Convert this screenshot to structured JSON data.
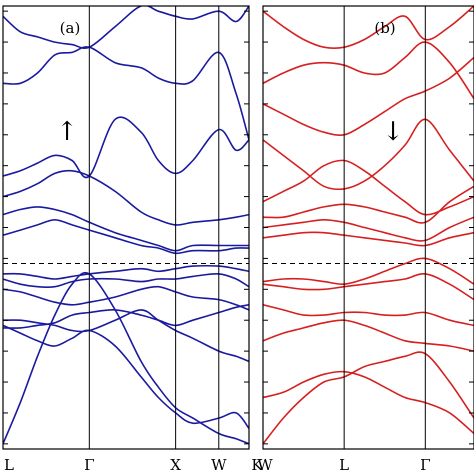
{
  "chart_data": [
    {
      "type": "line",
      "panel_label": "(a)",
      "spin_label": "↑",
      "color": "#1a1a9e",
      "x_ticks": [
        "L",
        "Γ",
        "X",
        "W",
        "K"
      ],
      "x_tick_positions": [
        0,
        1,
        2,
        2.5,
        2.85
      ],
      "fermi_level": 0,
      "ylim": [
        -3.6,
        5.0
      ],
      "grid": "vertical lines at high-symmetry points",
      "series": [
        {
          "x": [
            0,
            0.2,
            0.4,
            0.6,
            0.8,
            1.0,
            1.3,
            1.6,
            1.8,
            2.0,
            2.2,
            2.5,
            2.7,
            2.85
          ],
          "values": [
            -3.5,
            -2.7,
            -1.8,
            -1.0,
            -0.4,
            -0.2,
            -0.9,
            -1.9,
            -2.4,
            -2.8,
            -3.0,
            -3.3,
            -3.4,
            -3.5
          ]
        },
        {
          "x": [
            0,
            0.2,
            0.4,
            0.6,
            0.8,
            1.0,
            1.3,
            1.6,
            1.8,
            2.0,
            2.2,
            2.5,
            2.7,
            2.85
          ],
          "values": [
            -1.2,
            -1.35,
            -1.5,
            -1.6,
            -1.45,
            -1.3,
            -1.6,
            -2.2,
            -2.6,
            -2.9,
            -3.1,
            -3.0,
            -2.9,
            -3.2
          ]
        },
        {
          "x": [
            0,
            0.2,
            0.4,
            0.6,
            0.8,
            1.0,
            1.3,
            1.6,
            1.8,
            2.0,
            2.2,
            2.5,
            2.7,
            2.85
          ],
          "values": [
            -1.1,
            -1.1,
            -1.15,
            -1.2,
            -1.3,
            -1.3,
            -1.1,
            -0.9,
            -1.1,
            -1.3,
            -1.45,
            -1.7,
            -1.8,
            -1.9
          ]
        },
        {
          "x": [
            0,
            0.2,
            0.4,
            0.6,
            0.8,
            1.0,
            1.3,
            1.6,
            1.8,
            2.0,
            2.2,
            2.5,
            2.7,
            2.85
          ],
          "values": [
            -1.25,
            -1.25,
            -1.2,
            -1.15,
            -1.0,
            -0.95,
            -0.9,
            -1.0,
            -1.1,
            -1.2,
            -1.1,
            -0.95,
            -0.85,
            -0.8
          ]
        },
        {
          "x": [
            0,
            0.2,
            0.4,
            0.6,
            0.8,
            1.0,
            1.3,
            1.6,
            1.8,
            2.0,
            2.2,
            2.5,
            2.7,
            2.85
          ],
          "values": [
            -0.5,
            -0.55,
            -0.65,
            -0.75,
            -0.8,
            -0.75,
            -0.65,
            -0.5,
            -0.45,
            -0.55,
            -0.65,
            -0.7,
            -0.8,
            -0.9
          ]
        },
        {
          "x": [
            0,
            0.2,
            0.4,
            0.6,
            0.8,
            1.0,
            1.3,
            1.6,
            1.8,
            2.0,
            2.2,
            2.5,
            2.7,
            2.85
          ],
          "values": [
            -0.3,
            -0.4,
            -0.45,
            -0.45,
            -0.35,
            -0.3,
            -0.3,
            -0.35,
            -0.3,
            -0.3,
            -0.25,
            -0.2,
            -0.3,
            -0.45
          ]
        },
        {
          "x": [
            0,
            0.2,
            0.4,
            0.6,
            0.8,
            1.0,
            1.3,
            1.6,
            1.8,
            2.0,
            2.2,
            2.5,
            2.7,
            2.85
          ],
          "values": [
            -0.2,
            -0.2,
            -0.25,
            -0.3,
            -0.25,
            -0.2,
            -0.15,
            -0.1,
            -0.15,
            -0.1,
            -0.05,
            -0.05,
            -0.1,
            -0.15
          ]
        },
        {
          "x": [
            0,
            0.2,
            0.4,
            0.6,
            0.8,
            1.0,
            1.3,
            1.6,
            1.8,
            2.0,
            2.2,
            2.5,
            2.7,
            2.85
          ],
          "values": [
            0.55,
            0.65,
            0.75,
            0.85,
            0.75,
            0.65,
            0.5,
            0.35,
            0.3,
            0.2,
            0.25,
            0.25,
            0.3,
            0.3
          ]
        },
        {
          "x": [
            0,
            0.2,
            0.4,
            0.6,
            0.8,
            1.0,
            1.3,
            1.6,
            1.8,
            2.0,
            2.2,
            2.5,
            2.7,
            2.85
          ],
          "values": [
            0.95,
            1.05,
            1.1,
            1.05,
            0.95,
            0.8,
            0.6,
            0.45,
            0.35,
            0.25,
            0.35,
            0.35,
            0.35,
            0.35
          ]
        },
        {
          "x": [
            0,
            0.2,
            0.4,
            0.6,
            0.8,
            1.0,
            1.3,
            1.6,
            1.8,
            2.0,
            2.2,
            2.5,
            2.7,
            2.85
          ],
          "values": [
            1.3,
            1.4,
            1.55,
            1.75,
            1.8,
            1.7,
            1.4,
            1.0,
            0.85,
            0.75,
            0.8,
            0.85,
            0.9,
            0.95
          ]
        },
        {
          "x": [
            0,
            0.2,
            0.4,
            0.6,
            0.8,
            1.0,
            1.3,
            1.6,
            1.8,
            2.0,
            2.2,
            2.5,
            2.7,
            2.85
          ],
          "values": [
            1.7,
            1.8,
            1.95,
            2.1,
            2.0,
            1.7,
            2.8,
            2.55,
            2.0,
            1.75,
            2.0,
            2.6,
            2.2,
            2.4
          ]
        },
        {
          "x": [
            0,
            0.2,
            0.4,
            0.6,
            0.8,
            1.0,
            1.3,
            1.6,
            1.8,
            2.0,
            2.2,
            2.5,
            2.7,
            2.85
          ],
          "values": [
            3.5,
            3.5,
            3.7,
            4.05,
            4.1,
            4.2,
            3.9,
            3.8,
            3.6,
            3.5,
            3.55,
            4.1,
            3.3,
            2.4
          ]
        },
        {
          "x": [
            0,
            0.2,
            0.4,
            0.6,
            0.8,
            1.0,
            1.3,
            1.6,
            1.8,
            2.0,
            2.2,
            2.5,
            2.7,
            2.85
          ],
          "values": [
            4.8,
            4.5,
            4.4,
            4.3,
            4.25,
            4.2,
            4.6,
            5.0,
            4.9,
            4.8,
            4.75,
            4.9,
            4.7,
            5.0
          ]
        }
      ]
    },
    {
      "type": "line",
      "panel_label": "(b)",
      "spin_label": "↓",
      "color": "#d62020",
      "x_ticks": [
        "W",
        "L",
        "Γ"
      ],
      "x_tick_positions": [
        0,
        1,
        2
      ],
      "fermi_level": 0,
      "ylim": [
        -3.6,
        5.0
      ],
      "grid": "vertical lines at high-symmetry points",
      "series": [
        {
          "x": [
            0,
            0.25,
            0.5,
            0.75,
            1.0,
            1.25,
            1.5,
            1.75,
            2.0,
            2.3,
            2.6
          ],
          "values": [
            -3.5,
            -3.0,
            -2.6,
            -2.3,
            -2.2,
            -2.0,
            -1.9,
            -1.8,
            -1.75,
            -2.3,
            -3.0
          ]
        },
        {
          "x": [
            0,
            0.25,
            0.5,
            0.75,
            1.0,
            1.25,
            1.5,
            1.75,
            2.0,
            2.3,
            2.6
          ],
          "values": [
            -2.6,
            -2.5,
            -2.3,
            -2.15,
            -2.1,
            -2.2,
            -2.4,
            -2.6,
            -2.7,
            -2.9,
            -3.3
          ]
        },
        {
          "x": [
            0,
            0.25,
            0.5,
            0.75,
            1.0,
            1.25,
            1.5,
            1.75,
            2.0,
            2.3,
            2.6
          ],
          "values": [
            -1.5,
            -1.35,
            -1.25,
            -1.15,
            -1.1,
            -1.2,
            -1.35,
            -1.5,
            -1.55,
            -1.6,
            -1.7
          ]
        },
        {
          "x": [
            0,
            0.25,
            0.5,
            0.75,
            1.0,
            1.25,
            1.5,
            1.75,
            2.0,
            2.3,
            2.6
          ],
          "values": [
            -0.8,
            -0.9,
            -1.0,
            -1.0,
            -0.95,
            -0.95,
            -1.0,
            -1.0,
            -0.95,
            -1.1,
            -1.2
          ]
        },
        {
          "x": [
            0,
            0.25,
            0.5,
            0.75,
            1.0,
            1.25,
            1.5,
            1.75,
            2.0,
            2.3,
            2.6
          ],
          "values": [
            -0.4,
            -0.45,
            -0.5,
            -0.5,
            -0.45,
            -0.4,
            -0.35,
            -0.3,
            -0.2,
            -0.4,
            -0.7
          ]
        },
        {
          "x": [
            0,
            0.25,
            0.5,
            0.75,
            1.0,
            1.25,
            1.5,
            1.75,
            2.0,
            2.3,
            2.6
          ],
          "values": [
            -0.35,
            -0.3,
            -0.3,
            -0.35,
            -0.4,
            -0.3,
            -0.15,
            0.0,
            0.1,
            -0.1,
            -0.4
          ]
        },
        {
          "x": [
            0,
            0.25,
            0.5,
            0.75,
            1.0,
            1.25,
            1.5,
            1.75,
            2.0,
            2.3,
            2.6
          ],
          "values": [
            0.5,
            0.55,
            0.6,
            0.6,
            0.55,
            0.5,
            0.45,
            0.4,
            0.35,
            0.5,
            0.6
          ]
        },
        {
          "x": [
            0,
            0.25,
            0.5,
            0.75,
            1.0,
            1.25,
            1.5,
            1.75,
            2.0,
            2.3,
            2.6
          ],
          "values": [
            0.7,
            0.75,
            0.8,
            0.85,
            0.8,
            0.7,
            0.6,
            0.5,
            0.45,
            0.7,
            0.9
          ]
        },
        {
          "x": [
            0,
            0.25,
            0.5,
            0.75,
            1.0,
            1.25,
            1.5,
            1.75,
            2.0,
            2.3,
            2.6
          ],
          "values": [
            0.9,
            0.9,
            1.0,
            1.1,
            1.15,
            1.1,
            1.0,
            0.9,
            0.8,
            1.2,
            1.5
          ]
        },
        {
          "x": [
            0,
            0.25,
            0.5,
            0.75,
            1.0,
            1.25,
            1.5,
            1.75,
            2.0,
            2.3,
            2.6
          ],
          "values": [
            1.2,
            1.4,
            1.6,
            1.9,
            2.0,
            1.8,
            1.5,
            1.2,
            0.95,
            1.1,
            1.3
          ]
        },
        {
          "x": [
            0,
            0.25,
            0.5,
            0.75,
            1.0,
            1.25,
            1.5,
            1.75,
            2.0,
            2.3,
            2.6
          ],
          "values": [
            2.4,
            2.1,
            1.8,
            1.5,
            1.45,
            1.6,
            1.9,
            2.3,
            2.8,
            2.2,
            1.6
          ]
        },
        {
          "x": [
            0,
            0.25,
            0.5,
            0.75,
            1.0,
            1.25,
            1.5,
            1.75,
            2.0,
            2.3,
            2.6
          ],
          "values": [
            3.1,
            2.9,
            2.7,
            2.55,
            2.5,
            2.7,
            2.95,
            3.2,
            3.35,
            3.6,
            4.0
          ]
        },
        {
          "x": [
            0,
            0.25,
            0.5,
            0.75,
            1.0,
            1.25,
            1.5,
            1.75,
            2.0,
            2.3,
            2.6
          ],
          "values": [
            3.5,
            3.7,
            3.85,
            3.9,
            3.85,
            3.7,
            3.7,
            4.0,
            4.3,
            3.9,
            3.2
          ]
        },
        {
          "x": [
            0,
            0.25,
            0.5,
            0.75,
            1.0,
            1.25,
            1.5,
            1.75,
            2.0,
            2.3,
            2.6
          ],
          "values": [
            4.9,
            4.6,
            4.35,
            4.2,
            4.2,
            4.35,
            4.6,
            4.8,
            4.35,
            4.6,
            5.0
          ]
        }
      ]
    }
  ]
}
